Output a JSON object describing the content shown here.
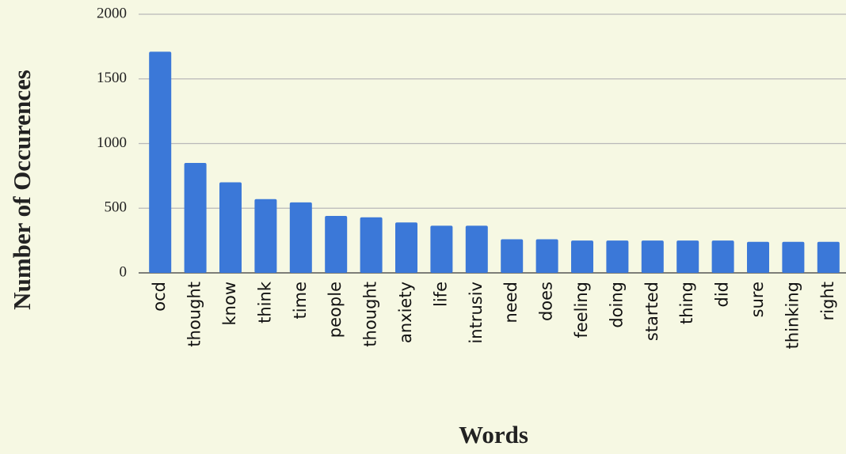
{
  "chart_data": {
    "type": "bar",
    "x_label": "Words",
    "y_label": "Number of Occurences",
    "categories": [
      "ocd",
      "thought",
      "know",
      "think",
      "time",
      "people",
      "thought",
      "anxiety",
      "life",
      "intrusiv",
      "need",
      "does",
      "feeling",
      "doing",
      "started",
      "thing",
      "did",
      "sure",
      "thinking",
      "right"
    ],
    "values": [
      1710,
      850,
      700,
      570,
      545,
      440,
      430,
      390,
      365,
      365,
      260,
      260,
      250,
      250,
      250,
      250,
      250,
      240,
      240,
      240
    ],
    "color": "#3b78d8",
    "ylim": [
      0,
      2000
    ],
    "yticks": [
      0,
      500,
      1000,
      1500,
      2000
    ],
    "grid": true
  }
}
